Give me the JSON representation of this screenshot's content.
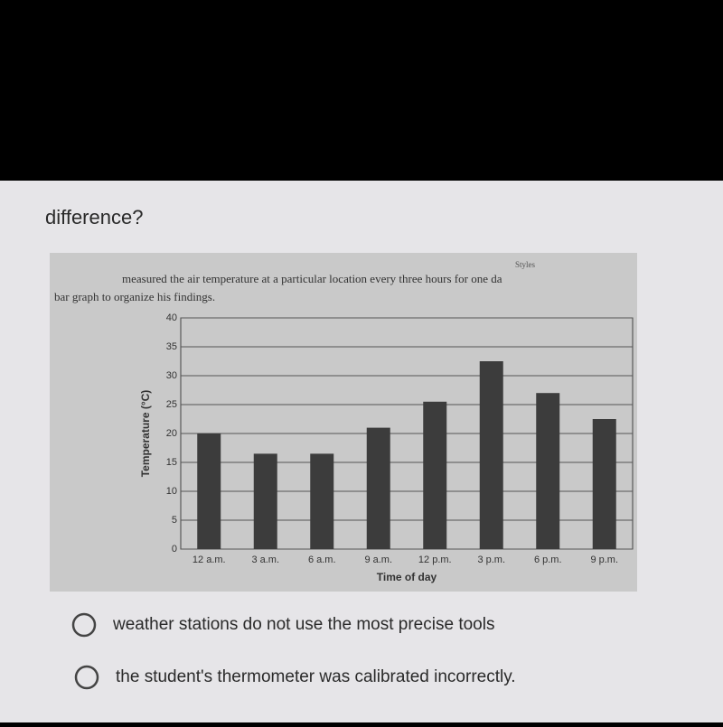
{
  "question": {
    "text": "difference?"
  },
  "figure": {
    "styles_label": "Styles",
    "intro": [
      "measured the air temperature at a particular location every three hours for one da",
      "bar graph to organize his findings."
    ]
  },
  "chart_data": {
    "type": "bar",
    "categories": [
      "12 a.m.",
      "3 a.m.",
      "6 a.m.",
      "9 a.m.",
      "12 p.m.",
      "3 p.m.",
      "6 p.m.",
      "9 p.m."
    ],
    "values": [
      20,
      16.5,
      16.5,
      21,
      25.5,
      32.5,
      27,
      22.5
    ],
    "color": "#3c3c3c",
    "ylim": [
      0,
      40
    ],
    "yticks": [
      0,
      5,
      10,
      15,
      20,
      25,
      30,
      35,
      40
    ],
    "grid": true,
    "y_label": "Temperature (°C)",
    "x_label": "Time of day"
  },
  "options": [
    "weather stations do not use the most precise tools",
    "the student's thermometer was calibrated incorrectly."
  ]
}
